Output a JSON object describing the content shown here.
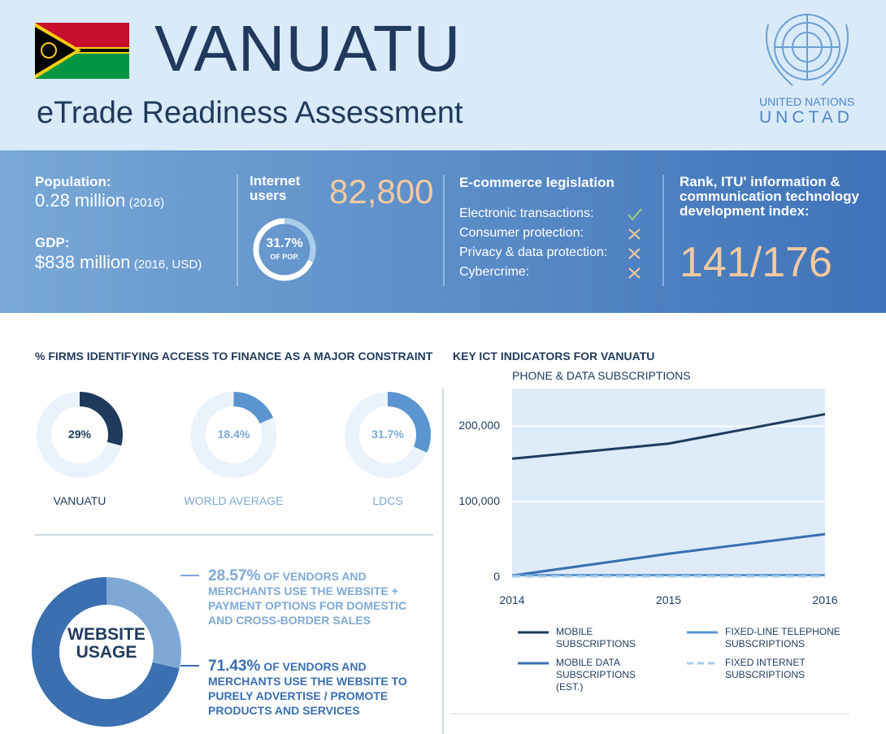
{
  "header": {
    "title": "VANUATU",
    "subtitle": "eTrade Readiness Assessment",
    "org": "UNITED NATIONS",
    "org_short": "UNCTAD"
  },
  "stats": {
    "population": {
      "label": "Population:",
      "value": "0.28 million",
      "note": "(2016)"
    },
    "gdp": {
      "label": "GDP:",
      "value": "$838 million",
      "note": "(2016, USD)"
    },
    "internet": {
      "label": "Internet users",
      "value": "82,800",
      "share": 31.7,
      "share_label": "31.7%",
      "share_note": "OF POP."
    },
    "ecommerce": {
      "title": "E-commerce legislation",
      "items": [
        {
          "label": "Electronic transactions:",
          "adopted": true
        },
        {
          "label": "Consumer protection:",
          "adopted": false
        },
        {
          "label": "Privacy & data protection:",
          "adopted": false
        },
        {
          "label": "Cybercrime:",
          "adopted": false
        }
      ]
    },
    "rank": {
      "title": "Rank, ITU' information & communication technology development index:",
      "value": "141/176"
    }
  },
  "chart_data": [
    {
      "type": "donut",
      "title": "% FIRMS IDENTIFYING ACCESS TO FINANCE AS A MAJOR CONSTRAINT",
      "categories": [
        "VANUATU",
        "WORLD AVERAGE",
        "LDCS"
      ],
      "values": [
        29,
        18.4,
        31.7
      ],
      "value_labels": [
        "29%",
        "18.4%",
        "31.7%"
      ],
      "colors": [
        "#1f3a5c",
        "#5b94cf",
        "#5b94cf"
      ],
      "label_colors": [
        "#1f3a5c",
        "#7fa9d4",
        "#7fa9d4"
      ],
      "track_color": "#eaf2fb"
    },
    {
      "type": "pie",
      "center_label": "WEBSITE USAGE",
      "categories": [
        "OF VENDORS AND MERCHANTS USE THE WEBSITE + PAYMENT OPTIONS FOR DOMESTIC AND CROSS-BORDER SALES",
        "OF VENDORS AND MERCHANTS USE THE WEBSITE TO PURELY ADVERTISE / PROMOTE PRODUCTS AND SERVICES"
      ],
      "values": [
        28.57,
        71.43
      ],
      "value_labels": [
        "28.57%",
        "71.43%"
      ],
      "colors": [
        "#7fa9d4",
        "#3a6fb0"
      ]
    },
    {
      "type": "line",
      "title": "KEY ICT INDICATORS FOR VANUATU",
      "subtitle": "PHONE & DATA SUBSCRIPTIONS",
      "x": [
        2014,
        2015,
        2016
      ],
      "xlim": [
        2014,
        2016
      ],
      "xticks": [
        2014,
        2015,
        2016
      ],
      "ylim": [
        0,
        250000
      ],
      "yticks": [
        0,
        {
          "value": 100000,
          "label": "100,000"
        },
        {
          "value": 200000,
          "label": "200,000"
        }
      ],
      "grid": true,
      "series": [
        {
          "name": "MOBILE SUBSCRIPTIONS",
          "color": "#1f3a5c",
          "dashed": false,
          "values": [
            157000,
            177000,
            216000
          ]
        },
        {
          "name": "MOBILE DATA SUBSCRIPTIONS (EST.)",
          "color": "#3a6fb0",
          "dashed": false,
          "values": [
            2000,
            31000,
            57000
          ]
        },
        {
          "name": "FIXED-LINE TELEPHONE SUBSCRIPTIONS",
          "color": "#5b94cf",
          "dashed": false,
          "values": [
            2500,
            2500,
            2500
          ]
        },
        {
          "name": "FIXED INTERNET SUBSCRIPTIONS",
          "color": "#a9cdea",
          "dashed": true,
          "values": [
            1000,
            1000,
            1000
          ]
        }
      ]
    }
  ]
}
